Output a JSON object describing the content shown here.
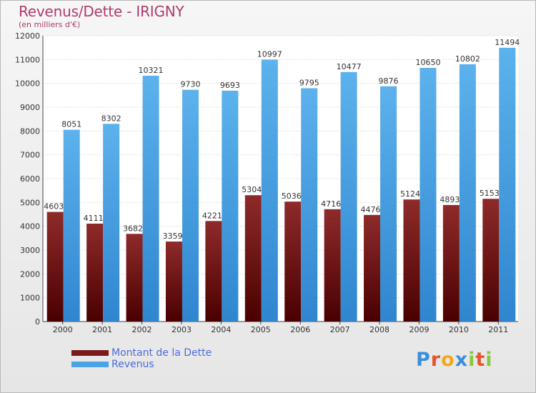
{
  "header": {
    "title": "Revenus/Dette - IRIGNY",
    "subtitle": "(en milliers d'€)"
  },
  "legend": {
    "items": [
      {
        "label": "Montant de la Dette",
        "color": "#7a1a1a"
      },
      {
        "label": "Revenus",
        "color": "#4aa3e6"
      }
    ]
  },
  "logo": {
    "letters": [
      "P",
      "r",
      "o",
      "x",
      "i",
      "t",
      "i"
    ],
    "colors": [
      "#3a8fd8",
      "#e8552b",
      "#f2a81c",
      "#3a8fd8",
      "#8cc63f",
      "#e8552b",
      "#8cc63f"
    ]
  },
  "chart_data": {
    "type": "bar",
    "title": "Revenus/Dette - IRIGNY",
    "subtitle": "(en milliers d'€)",
    "categories": [
      "2000",
      "2001",
      "2002",
      "2003",
      "2004",
      "2005",
      "2006",
      "2007",
      "2008",
      "2009",
      "2010",
      "2011"
    ],
    "series": [
      {
        "name": "Montant de la Dette",
        "color": "#7a1a1a",
        "values": [
          4603,
          4111,
          3682,
          3359,
          4221,
          5304,
          5036,
          4716,
          4476,
          5124,
          4893,
          5153
        ]
      },
      {
        "name": "Revenus",
        "color": "#4aa3e6",
        "values": [
          8051,
          8302,
          10321,
          9730,
          9693,
          10997,
          9795,
          10477,
          9876,
          10650,
          10802,
          11494
        ]
      }
    ],
    "ylim": [
      0,
      12000
    ],
    "yticks": [
      0,
      1000,
      2000,
      3000,
      4000,
      5000,
      6000,
      7000,
      8000,
      9000,
      10000,
      11000,
      12000
    ],
    "grid": true,
    "legend_position": "bottom-left"
  }
}
